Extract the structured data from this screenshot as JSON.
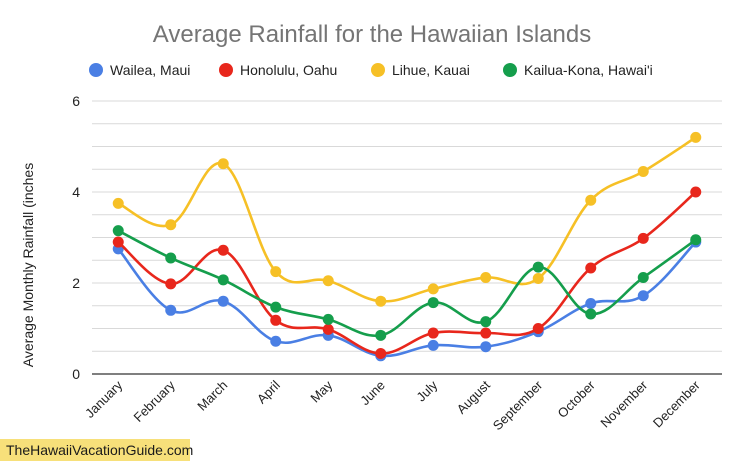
{
  "chart_data": {
    "type": "line",
    "title": "Average Rainfall for the Hawaiian Islands",
    "xlabel": "",
    "ylabel": "Average Monthly Rainfall (inches",
    "categories": [
      "January",
      "February",
      "March",
      "April",
      "May",
      "June",
      "July",
      "August",
      "September",
      "October",
      "November",
      "December"
    ],
    "ylim": [
      0,
      6
    ],
    "yticks": [
      0,
      2,
      4,
      6
    ],
    "grid": true,
    "legend_position": "top",
    "series": [
      {
        "name": "Wailea, Maui",
        "color": "#4a7fe4",
        "values": [
          2.75,
          1.4,
          1.6,
          0.72,
          0.85,
          0.4,
          0.63,
          0.6,
          0.93,
          1.55,
          1.72,
          2.9
        ]
      },
      {
        "name": "Honolulu, Oahu",
        "color": "#e8271c",
        "values": [
          2.9,
          1.98,
          2.72,
          1.18,
          0.98,
          0.45,
          0.9,
          0.9,
          1.0,
          2.33,
          2.98,
          4.0
        ]
      },
      {
        "name": "Lihue, Kauai",
        "color": "#f6c026",
        "values": [
          3.75,
          3.28,
          4.62,
          2.25,
          2.05,
          1.6,
          1.87,
          2.12,
          2.1,
          3.82,
          4.45,
          5.2
        ]
      },
      {
        "name": "Kailua-Kona, Hawai'i",
        "color": "#159e4c",
        "values": [
          3.15,
          2.55,
          2.07,
          1.47,
          1.2,
          0.85,
          1.57,
          1.15,
          2.35,
          1.32,
          2.12,
          2.95
        ]
      }
    ]
  },
  "watermark": "TheHawaiiVacationGuide.com"
}
